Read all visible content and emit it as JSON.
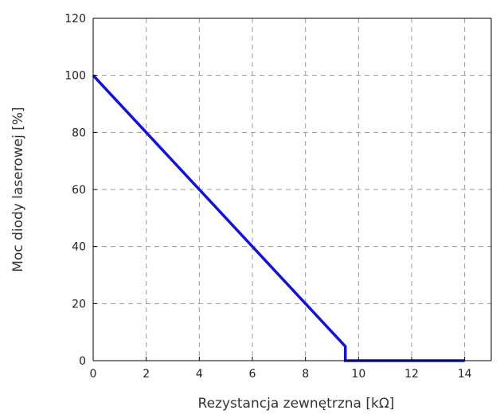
{
  "chart_data": {
    "type": "line",
    "title": "",
    "xlabel": "Rezystancja zewnętrzna [kΩ]",
    "ylabel": "Moc diody laserowej [%]",
    "xlim": [
      0,
      15
    ],
    "ylim": [
      0,
      120
    ],
    "xticks": [
      0,
      2,
      4,
      6,
      8,
      10,
      12,
      14
    ],
    "yticks": [
      0,
      20,
      40,
      60,
      80,
      100,
      120
    ],
    "xtick_labels": [
      "0",
      "2",
      "4",
      "6",
      "8",
      "10",
      "12",
      "14"
    ],
    "ytick_labels": [
      "0",
      "20",
      "40",
      "60",
      "80",
      "100",
      "120"
    ],
    "grid": true,
    "series": [
      {
        "color": "#1010e0",
        "x": [
          0,
          9.5,
          9.5,
          14
        ],
        "y": [
          100,
          5,
          0,
          0
        ]
      }
    ]
  }
}
